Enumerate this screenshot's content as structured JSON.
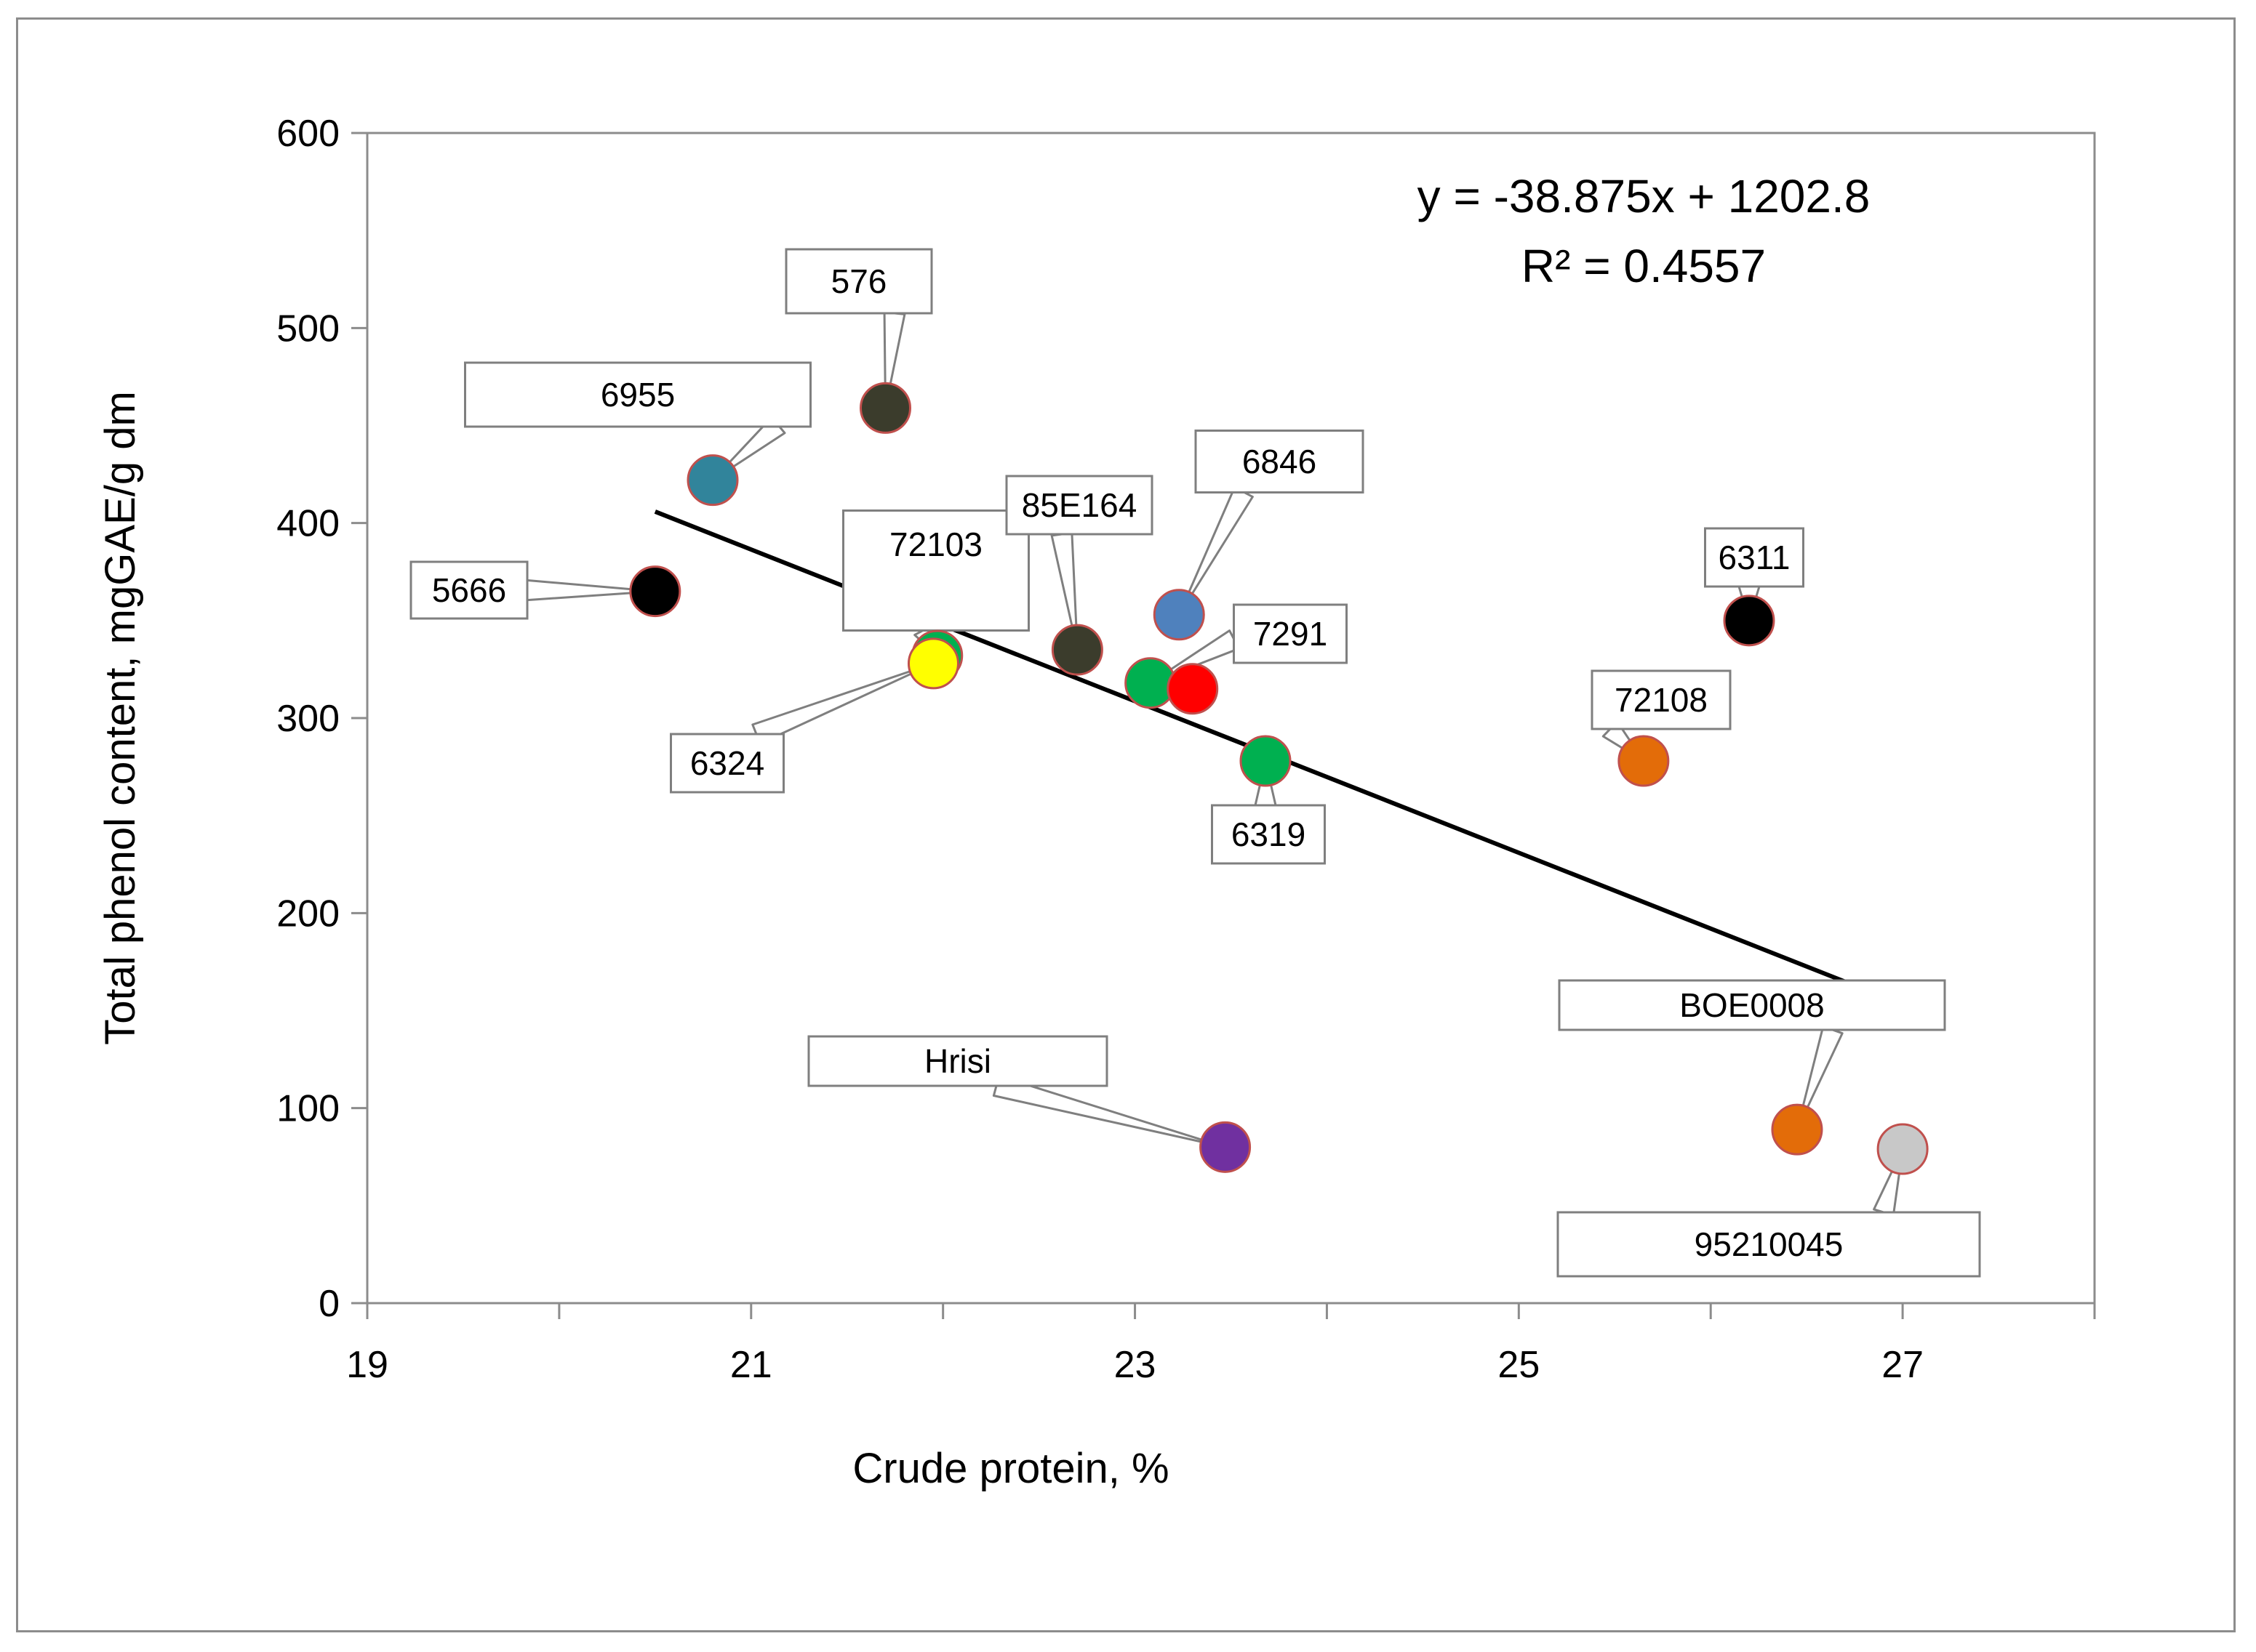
{
  "chart_data": {
    "type": "scatter",
    "title": "",
    "xlabel": "Crude protein,  %",
    "ylabel": "Total phenol content,  mgGAE/g dm",
    "xlim": [
      19,
      28
    ],
    "ylim": [
      0,
      600
    ],
    "xticks": [
      "19",
      "21",
      "23",
      "25",
      "27"
    ],
    "yticks": [
      "0",
      "100",
      "200",
      "300",
      "400",
      "500",
      "600"
    ],
    "grid": false,
    "trendline": {
      "equation": "y = -38.875x + 1202.8",
      "r2": "R² = 0.4557",
      "slope": -38.875,
      "intercept": 1202.8,
      "x_range": [
        20.5,
        27.0
      ]
    },
    "points": [
      {
        "label": "5666",
        "x": 20.5,
        "y": 365,
        "color": "#000000"
      },
      {
        "label": "6955",
        "x": 20.8,
        "y": 422,
        "color": "#31849b"
      },
      {
        "label": "576",
        "x": 21.7,
        "y": 459,
        "color": "#3b3c2c"
      },
      {
        "label": "72103",
        "x": 21.97,
        "y": 332,
        "color": "#00b050"
      },
      {
        "label": "6324",
        "x": 21.95,
        "y": 328,
        "color": "#ffff00"
      },
      {
        "label": "85E164",
        "x": 22.7,
        "y": 335,
        "color": "#3b3c2c"
      },
      {
        "label": "6846",
        "x": 23.23,
        "y": 353,
        "color": "#4f81bd"
      },
      {
        "label": "7291",
        "x": 23.08,
        "y": 318,
        "color": "#00b050"
      },
      {
        "label": "",
        "x": 23.3,
        "y": 315,
        "color": "#ff0000"
      },
      {
        "label": "6319",
        "x": 23.68,
        "y": 278,
        "color": "#00b050"
      },
      {
        "label": "6311",
        "x": 26.2,
        "y": 350,
        "color": "#000000"
      },
      {
        "label": "72108",
        "x": 25.65,
        "y": 278,
        "color": "#e36c09"
      },
      {
        "label": "Hrisi",
        "x": 23.47,
        "y": 80,
        "color": "#7030a0"
      },
      {
        "label": "BOE0008",
        "x": 26.45,
        "y": 89,
        "color": "#e36c09"
      },
      {
        "label": "95210045",
        "x": 27.0,
        "y": 79,
        "color": "#c8c8c8"
      }
    ]
  }
}
